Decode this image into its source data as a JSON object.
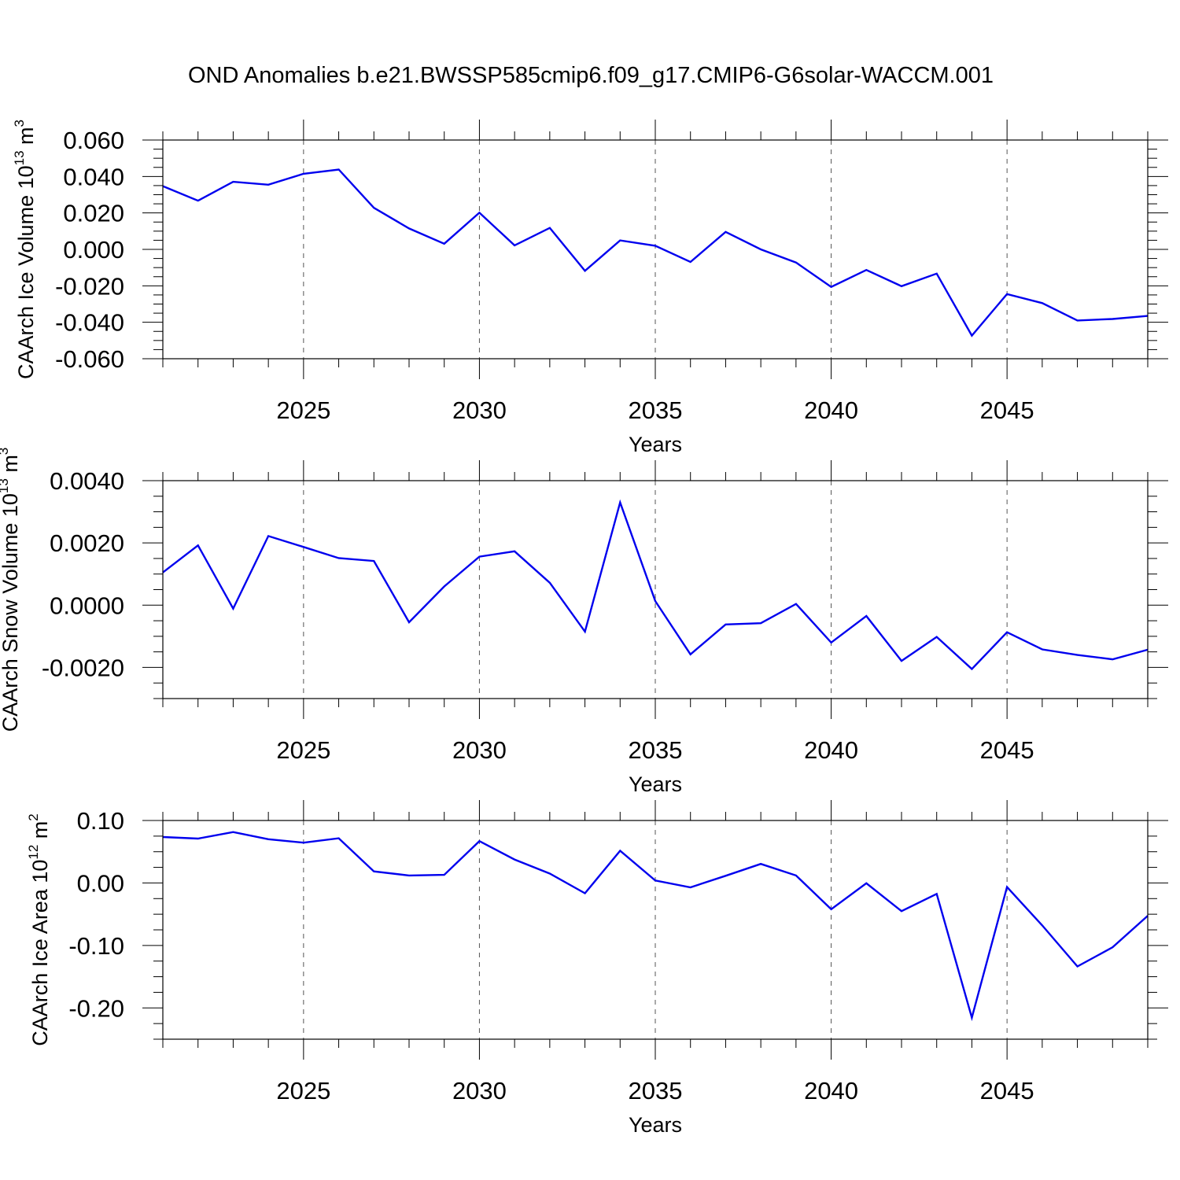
{
  "title": "OND Anomalies b.e21.BWSSP585cmip6.f09_g17.CMIP6-G6solar-WACCM.001",
  "colors": {
    "line": "#0000ee",
    "axis": "#000000",
    "grid": "#555555",
    "background": "#ffffff"
  },
  "chart_data": [
    {
      "type": "line",
      "ylabel": {
        "base": "CAArch Ice Volume 10",
        "sup1": "13",
        "unit": " m",
        "sup2": "3"
      },
      "xlabel": "Years",
      "xlim": [
        2021,
        2049
      ],
      "ylim": [
        -0.06,
        0.06
      ],
      "x_ticks": [
        2025,
        2030,
        2035,
        2040,
        2045
      ],
      "x_tick_labels": [
        "2025",
        "2030",
        "2035",
        "2040",
        "2045"
      ],
      "y_ticks": [
        0.06,
        0.04,
        0.02,
        0.0,
        -0.02,
        -0.04,
        -0.06
      ],
      "y_tick_labels": [
        "0.060",
        "0.040",
        "0.020",
        "0.000",
        "-0.020",
        "-0.040",
        "-0.060"
      ],
      "y_minor_step": 0.005,
      "grid": "vertical dashed at labeled years",
      "x": [
        2021,
        2022,
        2023,
        2024,
        2025,
        2026,
        2027,
        2028,
        2029,
        2030,
        2031,
        2032,
        2033,
        2034,
        2035,
        2036,
        2037,
        2038,
        2039,
        2040,
        2041,
        2042,
        2043,
        2044,
        2045,
        2046,
        2047,
        2048,
        2049
      ],
      "series": [
        {
          "name": "CAArch Ice Volume",
          "values": [
            0.0347,
            0.0267,
            0.0371,
            0.0355,
            0.0415,
            0.0438,
            0.0228,
            0.0115,
            0.0031,
            0.0201,
            0.0022,
            0.0118,
            -0.0118,
            0.0049,
            0.002,
            -0.0069,
            0.0096,
            0.0,
            -0.0072,
            -0.0206,
            -0.0113,
            -0.0202,
            -0.0133,
            -0.0473,
            -0.0245,
            -0.0295,
            -0.039,
            -0.0382,
            -0.0365
          ]
        }
      ]
    },
    {
      "type": "line",
      "ylabel": {
        "base": "CAArch Snow Volume 10",
        "sup1": "13",
        "unit": " m",
        "sup2": "3"
      },
      "xlabel": "Years",
      "xlim": [
        2021,
        2049
      ],
      "ylim": [
        -0.003,
        0.004
      ],
      "x_ticks": [
        2025,
        2030,
        2035,
        2040,
        2045
      ],
      "x_tick_labels": [
        "2025",
        "2030",
        "2035",
        "2040",
        "2045"
      ],
      "y_ticks": [
        0.004,
        0.002,
        0.0,
        -0.002
      ],
      "y_tick_labels": [
        "0.0040",
        "0.0020",
        "0.0000",
        "-0.0020"
      ],
      "y_minor_step": 0.0005,
      "grid": "vertical dashed at labeled years",
      "x": [
        2021,
        2022,
        2023,
        2024,
        2025,
        2026,
        2027,
        2028,
        2029,
        2030,
        2031,
        2032,
        2033,
        2034,
        2035,
        2036,
        2037,
        2038,
        2039,
        2040,
        2041,
        2042,
        2043,
        2044,
        2045,
        2046,
        2047,
        2048,
        2049
      ],
      "series": [
        {
          "name": "CAArch Snow Volume",
          "values": [
            0.00105,
            0.00192,
            -0.00011,
            0.00222,
            0.00187,
            0.00151,
            0.00142,
            -0.00055,
            0.0006,
            0.00156,
            0.00173,
            0.00072,
            -0.00085,
            0.0033,
            0.00013,
            -0.00158,
            -0.00062,
            -0.00058,
            4e-05,
            -0.0012,
            -0.00035,
            -0.00179,
            -0.00102,
            -0.00205,
            -0.00087,
            -0.00142,
            -0.0016,
            -0.00174,
            -0.00143
          ]
        }
      ]
    },
    {
      "type": "line",
      "ylabel": {
        "base": "CAArch Ice Area 10",
        "sup1": "12",
        "unit": " m",
        "sup2": "2"
      },
      "xlabel": "Years",
      "xlim": [
        2021,
        2049
      ],
      "ylim": [
        -0.25,
        0.1
      ],
      "x_ticks": [
        2025,
        2030,
        2035,
        2040,
        2045
      ],
      "x_tick_labels": [
        "2025",
        "2030",
        "2035",
        "2040",
        "2045"
      ],
      "y_ticks": [
        0.1,
        0.0,
        -0.1,
        -0.2
      ],
      "y_tick_labels": [
        "0.10",
        "0.00",
        "-0.10",
        "-0.20"
      ],
      "y_minor_step": 0.025,
      "grid": "vertical dashed at labeled years",
      "x": [
        2021,
        2022,
        2023,
        2024,
        2025,
        2026,
        2027,
        2028,
        2029,
        2030,
        2031,
        2032,
        2033,
        2034,
        2035,
        2036,
        2037,
        2038,
        2039,
        2040,
        2041,
        2042,
        2043,
        2044,
        2045,
        2046,
        2047,
        2048,
        2049
      ],
      "series": [
        {
          "name": "CAArch Ice Area",
          "values": [
            0.0735,
            0.071,
            0.0815,
            0.07,
            0.0645,
            0.0715,
            0.0185,
            0.012,
            0.013,
            0.067,
            0.0375,
            0.015,
            -0.0165,
            0.0515,
            0.004,
            -0.007,
            0.0115,
            0.0305,
            0.012,
            -0.042,
            -0.0005,
            -0.045,
            -0.0175,
            -0.2155,
            -0.0065,
            -0.068,
            -0.1335,
            -0.103,
            -0.0525
          ]
        }
      ]
    }
  ]
}
